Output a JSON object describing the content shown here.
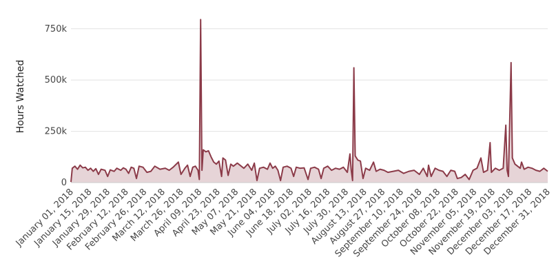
{
  "chart_data": {
    "type": "area",
    "ylabel": "Hours Watched",
    "ylim": [
      0,
      850000
    ],
    "y_ticks": [
      0,
      250000,
      500000,
      750000
    ],
    "y_tick_labels": [
      "0",
      "250k",
      "500k",
      "750k"
    ],
    "x_tick_labels": [
      "January 01, 2018",
      "January 15, 2018",
      "January 29, 2018",
      "February 12, 2018",
      "February 26, 2018",
      "March 12, 2018",
      "March 26, 2018",
      "April 09, 2018",
      "April 23, 2018",
      "May 07, 2018",
      "May 21, 2018",
      "June 04, 2018",
      "June 18, 2018",
      "July 02, 2018",
      "July 16, 2018",
      "July 30, 2018",
      "August 13, 2018",
      "August 27, 2018",
      "September 10, 2018",
      "September 24, 2018",
      "October 08, 2018",
      "October 22, 2018",
      "November 05, 2018",
      "November 19, 2018",
      "December 03, 2018",
      "December 17, 2018",
      "December 31, 2018"
    ],
    "x_start": "2018-01-01",
    "x_end": "2018-12-31",
    "grid": true,
    "series": [
      {
        "color": "#8b3a48",
        "points": [
          [
            "2018-01-01",
            3000
          ],
          [
            "2018-01-02",
            70000
          ],
          [
            "2018-01-04",
            80000
          ],
          [
            "2018-01-06",
            65000
          ],
          [
            "2018-01-08",
            85000
          ],
          [
            "2018-01-10",
            72000
          ],
          [
            "2018-01-12",
            75000
          ],
          [
            "2018-01-14",
            60000
          ],
          [
            "2018-01-16",
            70000
          ],
          [
            "2018-01-18",
            55000
          ],
          [
            "2018-01-20",
            68000
          ],
          [
            "2018-01-22",
            40000
          ],
          [
            "2018-01-24",
            65000
          ],
          [
            "2018-01-27",
            60000
          ],
          [
            "2018-01-29",
            30000
          ],
          [
            "2018-01-31",
            62000
          ],
          [
            "2018-02-03",
            55000
          ],
          [
            "2018-02-05",
            70000
          ],
          [
            "2018-02-08",
            60000
          ],
          [
            "2018-02-10",
            72000
          ],
          [
            "2018-02-12",
            65000
          ],
          [
            "2018-02-14",
            45000
          ],
          [
            "2018-02-16",
            75000
          ],
          [
            "2018-02-18",
            70000
          ],
          [
            "2018-02-20",
            20000
          ],
          [
            "2018-02-22",
            80000
          ],
          [
            "2018-02-25",
            75000
          ],
          [
            "2018-02-28",
            50000
          ],
          [
            "2018-03-03",
            55000
          ],
          [
            "2018-03-06",
            80000
          ],
          [
            "2018-03-10",
            65000
          ],
          [
            "2018-03-14",
            70000
          ],
          [
            "2018-03-17",
            60000
          ],
          [
            "2018-03-20",
            75000
          ],
          [
            "2018-03-24",
            100000
          ],
          [
            "2018-03-26",
            40000
          ],
          [
            "2018-03-29",
            70000
          ],
          [
            "2018-03-31",
            85000
          ],
          [
            "2018-04-02",
            30000
          ],
          [
            "2018-04-04",
            75000
          ],
          [
            "2018-04-06",
            80000
          ],
          [
            "2018-04-08",
            60000
          ],
          [
            "2018-04-09",
            15000
          ],
          [
            "2018-04-10",
            795000
          ],
          [
            "2018-04-11",
            60000
          ],
          [
            "2018-04-12",
            160000
          ],
          [
            "2018-04-14",
            150000
          ],
          [
            "2018-04-16",
            155000
          ],
          [
            "2018-04-18",
            125000
          ],
          [
            "2018-04-20",
            100000
          ],
          [
            "2018-04-22",
            90000
          ],
          [
            "2018-04-24",
            105000
          ],
          [
            "2018-04-26",
            30000
          ],
          [
            "2018-04-27",
            120000
          ],
          [
            "2018-04-29",
            110000
          ],
          [
            "2018-05-01",
            35000
          ],
          [
            "2018-05-03",
            90000
          ],
          [
            "2018-05-05",
            80000
          ],
          [
            "2018-05-08",
            95000
          ],
          [
            "2018-05-10",
            85000
          ],
          [
            "2018-05-13",
            70000
          ],
          [
            "2018-05-16",
            90000
          ],
          [
            "2018-05-19",
            60000
          ],
          [
            "2018-05-21",
            95000
          ],
          [
            "2018-05-23",
            10000
          ],
          [
            "2018-05-25",
            70000
          ],
          [
            "2018-05-28",
            75000
          ],
          [
            "2018-05-31",
            65000
          ],
          [
            "2018-06-02",
            95000
          ],
          [
            "2018-06-04",
            70000
          ],
          [
            "2018-06-06",
            80000
          ],
          [
            "2018-06-08",
            60000
          ],
          [
            "2018-06-10",
            10000
          ],
          [
            "2018-06-12",
            75000
          ],
          [
            "2018-06-15",
            80000
          ],
          [
            "2018-06-18",
            70000
          ],
          [
            "2018-06-20",
            30000
          ],
          [
            "2018-06-22",
            75000
          ],
          [
            "2018-06-25",
            70000
          ],
          [
            "2018-06-28",
            72000
          ],
          [
            "2018-07-01",
            15000
          ],
          [
            "2018-07-03",
            70000
          ],
          [
            "2018-07-06",
            75000
          ],
          [
            "2018-07-09",
            65000
          ],
          [
            "2018-07-11",
            20000
          ],
          [
            "2018-07-13",
            70000
          ],
          [
            "2018-07-16",
            80000
          ],
          [
            "2018-07-19",
            60000
          ],
          [
            "2018-07-22",
            70000
          ],
          [
            "2018-07-25",
            65000
          ],
          [
            "2018-07-28",
            75000
          ],
          [
            "2018-07-31",
            50000
          ],
          [
            "2018-08-02",
            140000
          ],
          [
            "2018-08-03",
            60000
          ],
          [
            "2018-08-04",
            10000
          ],
          [
            "2018-08-05",
            560000
          ],
          [
            "2018-08-06",
            130000
          ],
          [
            "2018-08-08",
            110000
          ],
          [
            "2018-08-10",
            105000
          ],
          [
            "2018-08-12",
            20000
          ],
          [
            "2018-08-14",
            70000
          ],
          [
            "2018-08-17",
            60000
          ],
          [
            "2018-08-20",
            100000
          ],
          [
            "2018-08-22",
            55000
          ],
          [
            "2018-08-25",
            65000
          ],
          [
            "2018-08-28",
            60000
          ],
          [
            "2018-08-31",
            50000
          ],
          [
            "2018-09-04",
            55000
          ],
          [
            "2018-09-08",
            60000
          ],
          [
            "2018-09-12",
            45000
          ],
          [
            "2018-09-16",
            55000
          ],
          [
            "2018-09-20",
            60000
          ],
          [
            "2018-09-24",
            40000
          ],
          [
            "2018-09-27",
            70000
          ],
          [
            "2018-09-30",
            30000
          ],
          [
            "2018-10-01",
            85000
          ],
          [
            "2018-10-03",
            30000
          ],
          [
            "2018-10-06",
            70000
          ],
          [
            "2018-10-09",
            60000
          ],
          [
            "2018-10-12",
            55000
          ],
          [
            "2018-10-15",
            30000
          ],
          [
            "2018-10-18",
            60000
          ],
          [
            "2018-10-21",
            55000
          ],
          [
            "2018-10-23",
            20000
          ],
          [
            "2018-10-26",
            25000
          ],
          [
            "2018-10-29",
            40000
          ],
          [
            "2018-11-01",
            15000
          ],
          [
            "2018-11-04",
            60000
          ],
          [
            "2018-11-07",
            70000
          ],
          [
            "2018-11-10",
            120000
          ],
          [
            "2018-11-12",
            50000
          ],
          [
            "2018-11-15",
            60000
          ],
          [
            "2018-11-17",
            195000
          ],
          [
            "2018-11-18",
            50000
          ],
          [
            "2018-11-21",
            70000
          ],
          [
            "2018-11-24",
            60000
          ],
          [
            "2018-11-27",
            70000
          ],
          [
            "2018-11-29",
            280000
          ],
          [
            "2018-11-30",
            60000
          ],
          [
            "2018-12-01",
            30000
          ],
          [
            "2018-12-03",
            585000
          ],
          [
            "2018-12-04",
            120000
          ],
          [
            "2018-12-06",
            90000
          ],
          [
            "2018-12-08",
            80000
          ],
          [
            "2018-12-10",
            70000
          ],
          [
            "2018-12-11",
            100000
          ],
          [
            "2018-12-13",
            65000
          ],
          [
            "2018-12-16",
            75000
          ],
          [
            "2018-12-19",
            70000
          ],
          [
            "2018-12-22",
            60000
          ],
          [
            "2018-12-25",
            55000
          ],
          [
            "2018-12-28",
            70000
          ],
          [
            "2018-12-31",
            55000
          ]
        ]
      }
    ]
  }
}
